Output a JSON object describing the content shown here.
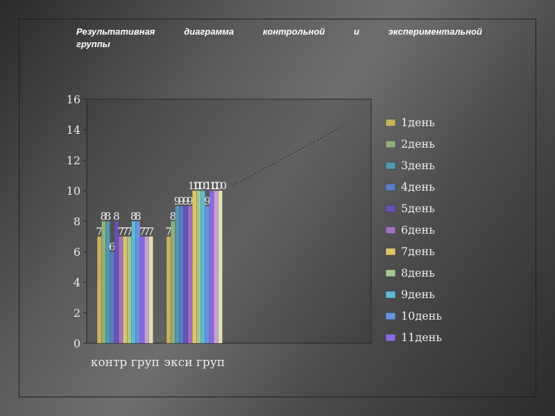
{
  "title": {
    "line1_words": [
      "Результативная",
      "диаграмма",
      "контрольной",
      "и",
      "экспериментальной"
    ],
    "line2": "группы"
  },
  "chart_data": {
    "type": "bar",
    "categories": [
      "контр груп",
      "экси груп"
    ],
    "ylim": [
      0,
      16
    ],
    "yticks": [
      "0",
      "2",
      "4",
      "6",
      "8",
      "10",
      "12",
      "14",
      "16"
    ],
    "grid": false,
    "legend": "right",
    "series": [
      {
        "name": "1день",
        "color": "#c8b25a",
        "values": [
          7,
          7
        ]
      },
      {
        "name": "2день",
        "color": "#8fb07a",
        "values": [
          8,
          8
        ]
      },
      {
        "name": "3день",
        "color": "#4f9aae",
        "values": [
          8,
          9
        ]
      },
      {
        "name": "4день",
        "color": "#5b7bc8",
        "values": [
          6,
          9
        ]
      },
      {
        "name": "5день",
        "color": "#6a52b4",
        "values": [
          8,
          9
        ]
      },
      {
        "name": "6день",
        "color": "#a070c0",
        "values": [
          7,
          9
        ]
      },
      {
        "name": "7день",
        "color": "#dcc66a",
        "values": [
          7,
          10
        ]
      },
      {
        "name": "8день",
        "color": "#a6c890",
        "values": [
          7,
          10
        ]
      },
      {
        "name": "9день",
        "color": "#5fb8d8",
        "values": [
          8,
          10
        ]
      },
      {
        "name": "10день",
        "color": "#6a92e0",
        "values": [
          8,
          9
        ]
      },
      {
        "name": "11день",
        "color": "#8a6ae0",
        "values": [
          7,
          10
        ]
      },
      {
        "name": "",
        "color": "#c8a0d8",
        "values": [
          7,
          10
        ]
      },
      {
        "name": "",
        "color": "#e4e0b8",
        "values": [
          7,
          10
        ]
      }
    ]
  }
}
